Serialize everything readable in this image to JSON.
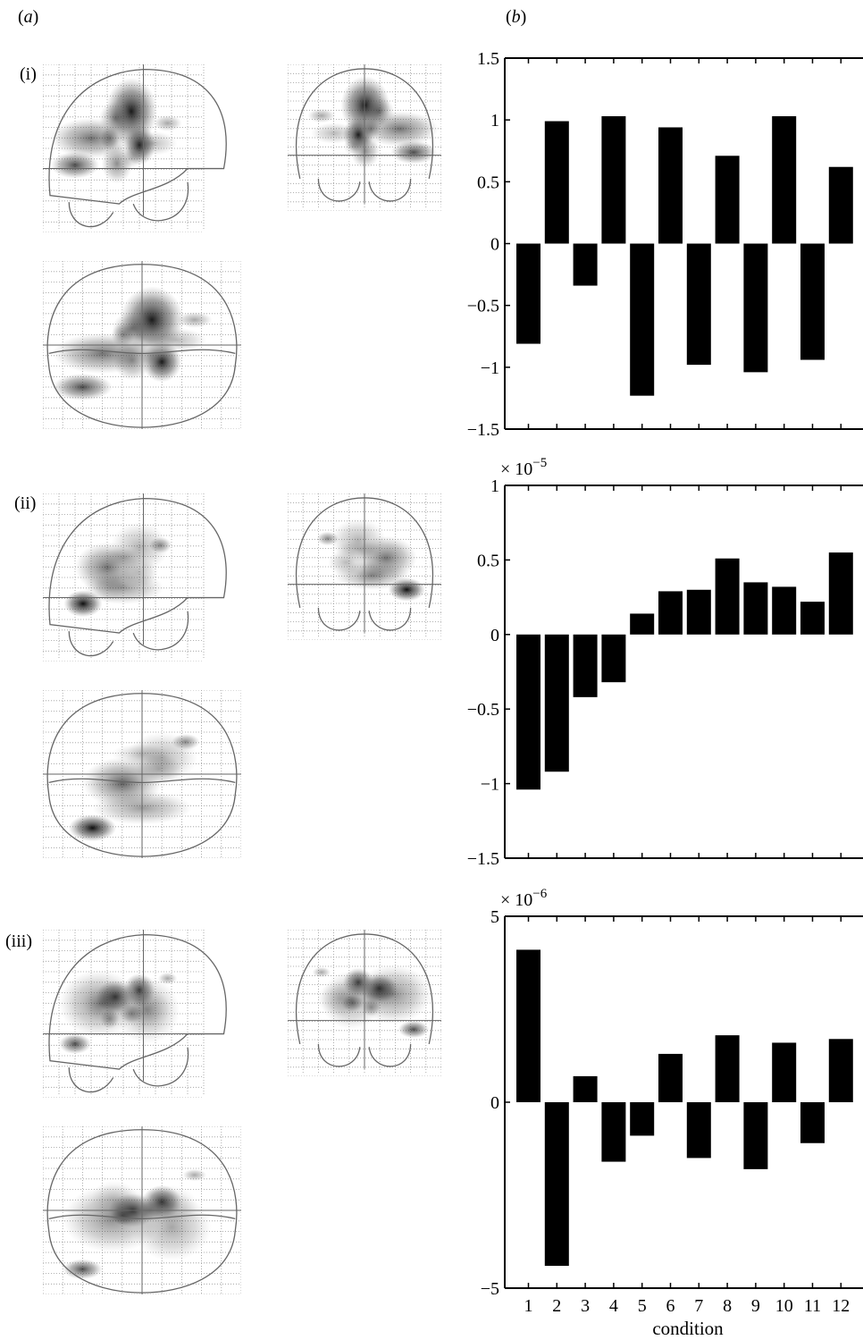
{
  "panel_labels": {
    "a": "a",
    "b": "b"
  },
  "row_labels": [
    "(i)",
    "(ii)",
    "(iii)"
  ],
  "chart_data": [
    {
      "type": "bar",
      "categories": [
        "1",
        "2",
        "3",
        "4",
        "5",
        "6",
        "7",
        "8",
        "9",
        "10",
        "11",
        "12"
      ],
      "values": [
        -0.81,
        0.99,
        -0.34,
        1.03,
        -1.23,
        0.94,
        -0.98,
        0.71,
        -1.04,
        1.03,
        -0.94,
        0.62
      ],
      "ylim": [
        -1.5,
        1.5
      ],
      "yticks": [
        "1.5",
        "1",
        "0.5",
        "0",
        "−0.5",
        "−1",
        "−1.5"
      ],
      "ytick_values": [
        1.5,
        1,
        0.5,
        0,
        -0.5,
        -1,
        -1.5
      ],
      "multiplier": "",
      "xlabel": "",
      "show_xticklabels": false
    },
    {
      "type": "bar",
      "categories": [
        "1",
        "2",
        "3",
        "4",
        "5",
        "6",
        "7",
        "8",
        "9",
        "10",
        "11",
        "12"
      ],
      "values": [
        -1.04,
        -0.92,
        -0.42,
        -0.32,
        0.14,
        0.29,
        0.3,
        0.51,
        0.35,
        0.32,
        0.22,
        0.55
      ],
      "ylim": [
        -1.5,
        1
      ],
      "yticks": [
        "1",
        "0.5",
        "0",
        "−0.5",
        "−1",
        "−1.5"
      ],
      "ytick_values": [
        1,
        0.5,
        0,
        -0.5,
        -1,
        -1.5
      ],
      "multiplier": "× 10",
      "multiplier_exp": "−5",
      "xlabel": "",
      "show_xticklabels": false
    },
    {
      "type": "bar",
      "categories": [
        "1",
        "2",
        "3",
        "4",
        "5",
        "6",
        "7",
        "8",
        "9",
        "10",
        "11",
        "12"
      ],
      "values": [
        4.1,
        -4.4,
        0.7,
        -1.6,
        -0.9,
        1.3,
        -1.5,
        1.8,
        -1.8,
        1.6,
        -1.1,
        1.7
      ],
      "ylim": [
        -5,
        5
      ],
      "yticks": [
        "5",
        "0",
        "−5"
      ],
      "ytick_values": [
        5,
        0,
        -5
      ],
      "multiplier": "× 10",
      "multiplier_exp": "−6",
      "xlabel": "condition",
      "show_xticklabels": true
    }
  ],
  "colors": {
    "bar": "#000000",
    "outline": "#666666",
    "grid": "#999999"
  }
}
